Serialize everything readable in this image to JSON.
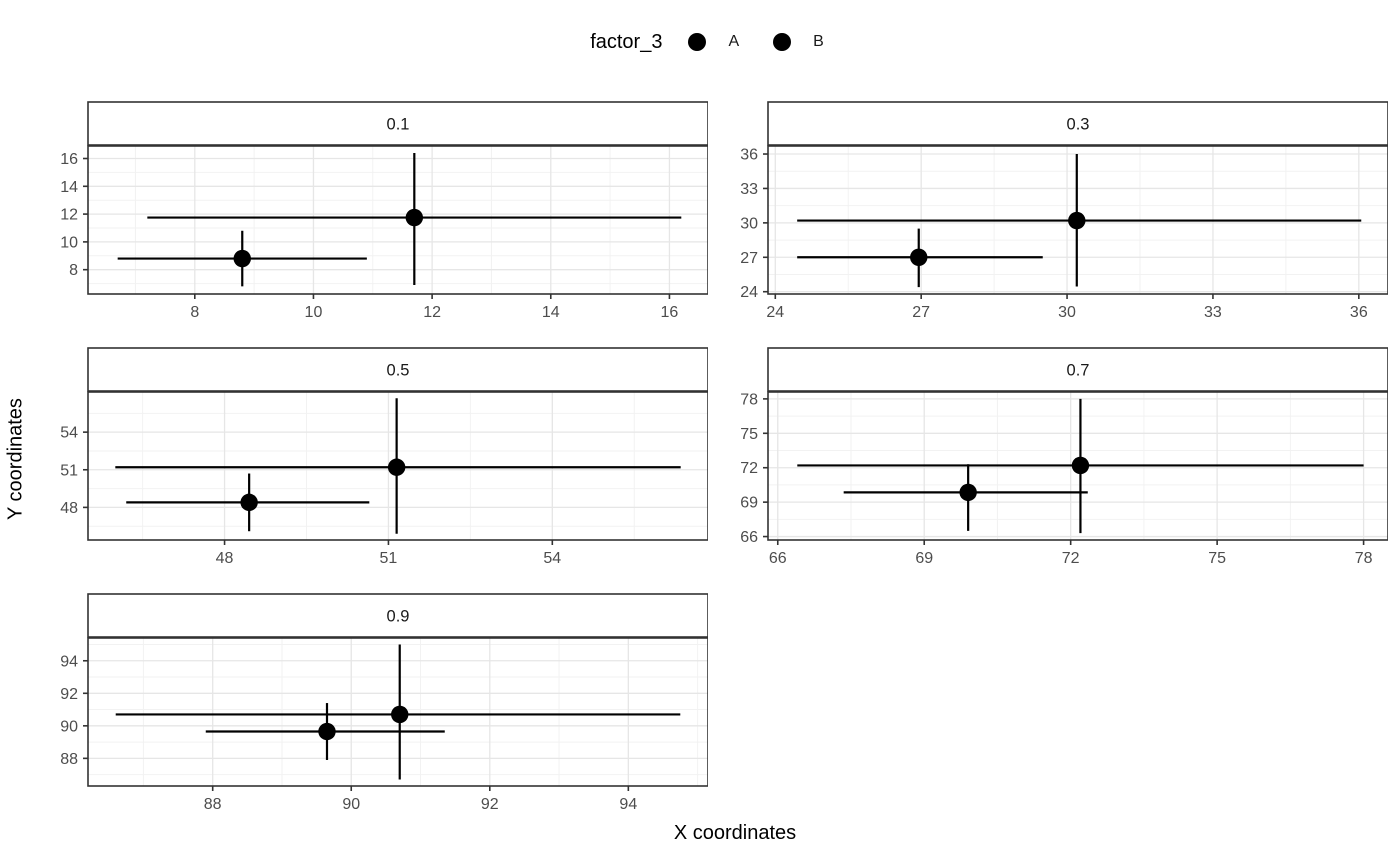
{
  "legend": {
    "title": "factor_3",
    "items": [
      {
        "label": "A",
        "key_icon": "filled-circle"
      },
      {
        "label": "B",
        "key_icon": "filled-circle"
      }
    ]
  },
  "x_axis_title": "X coordinates",
  "y_axis_title": "Y coordinates",
  "colors": {
    "point": "#000000",
    "error_bar": "#000000",
    "panel_background": "#ffffff",
    "grid_major": "#e6e6e6",
    "grid_minor": "#f2f2f2",
    "panel_border": "#333333",
    "strip_background": "#ffffff",
    "strip_text": "#1a1a1a",
    "tick_mark": "#333333",
    "tick_text": "#4d4d4d"
  },
  "chart_data": {
    "type": "scatter",
    "title": "",
    "xlabel": "X coordinates",
    "ylabel": "Y coordinates",
    "legend_title": "factor_3",
    "legend_position": "top",
    "grid": true,
    "facet_layout": {
      "columns": 2,
      "rows": 3
    },
    "facets": [
      {
        "label": "0.1",
        "xlim": [
          6.2,
          16.65
        ],
        "ylim": [
          6.25,
          16.9
        ],
        "xticks": [
          8,
          10,
          12,
          14,
          16
        ],
        "yticks": [
          8,
          10,
          12,
          14,
          16
        ],
        "points": [
          {
            "name": "A",
            "x": 8.8,
            "y": 8.8,
            "xmin": 6.7,
            "xmax": 10.9,
            "ymin": 6.8,
            "ymax": 10.8
          },
          {
            "name": "B",
            "x": 11.7,
            "y": 11.75,
            "xmin": 7.2,
            "xmax": 16.2,
            "ymin": 6.9,
            "ymax": 16.4
          }
        ]
      },
      {
        "label": "0.3",
        "xlim": [
          23.85,
          36.6
        ],
        "ylim": [
          23.8,
          36.7
        ],
        "xticks": [
          24,
          27,
          30,
          33,
          36
        ],
        "yticks": [
          24,
          27,
          30,
          33,
          36
        ],
        "points": [
          {
            "name": "A",
            "x": 26.95,
            "y": 27.0,
            "xmin": 24.45,
            "xmax": 29.5,
            "ymin": 24.4,
            "ymax": 29.5
          },
          {
            "name": "B",
            "x": 30.2,
            "y": 30.2,
            "xmin": 24.45,
            "xmax": 36.05,
            "ymin": 24.45,
            "ymax": 36.0
          }
        ]
      },
      {
        "label": "0.5",
        "xlim": [
          45.5,
          56.85
        ],
        "ylim": [
          45.4,
          57.2
        ],
        "xticks": [
          48,
          51,
          54
        ],
        "yticks": [
          48,
          51,
          54
        ],
        "points": [
          {
            "name": "A",
            "x": 48.45,
            "y": 48.4,
            "xmin": 46.2,
            "xmax": 50.65,
            "ymin": 46.1,
            "ymax": 50.7
          },
          {
            "name": "B",
            "x": 51.15,
            "y": 51.2,
            "xmin": 46.0,
            "xmax": 56.35,
            "ymin": 45.9,
            "ymax": 56.7
          }
        ]
      },
      {
        "label": "0.7",
        "xlim": [
          65.8,
          78.5
        ],
        "ylim": [
          65.7,
          78.6
        ],
        "xticks": [
          66,
          69,
          72,
          75,
          78
        ],
        "yticks": [
          66,
          69,
          72,
          75,
          78
        ],
        "points": [
          {
            "name": "A",
            "x": 69.9,
            "y": 69.85,
            "xmin": 67.35,
            "xmax": 72.35,
            "ymin": 66.5,
            "ymax": 72.3
          },
          {
            "name": "B",
            "x": 72.2,
            "y": 72.2,
            "xmin": 66.4,
            "xmax": 78.0,
            "ymin": 66.3,
            "ymax": 78.0
          }
        ]
      },
      {
        "label": "0.9",
        "xlim": [
          86.2,
          95.15
        ],
        "ylim": [
          86.3,
          95.4
        ],
        "xticks": [
          88,
          90,
          92,
          94
        ],
        "yticks": [
          88,
          90,
          92,
          94
        ],
        "points": [
          {
            "name": "A",
            "x": 89.65,
            "y": 89.65,
            "xmin": 87.9,
            "xmax": 91.35,
            "ymin": 87.9,
            "ymax": 91.4
          },
          {
            "name": "B",
            "x": 90.7,
            "y": 90.7,
            "xmin": 86.6,
            "xmax": 94.75,
            "ymin": 86.7,
            "ymax": 95.0
          }
        ]
      }
    ]
  }
}
